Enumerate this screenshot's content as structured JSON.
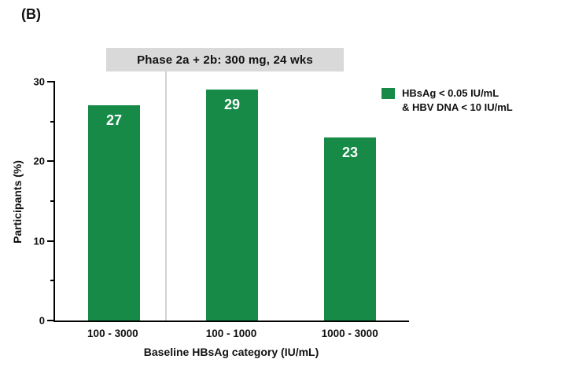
{
  "panel_label": "(B)",
  "legend": {
    "swatch_color": "#178a47",
    "lines": [
      "HBsAg < 0.05 IU/mL",
      "& HBV DNA < 10 IU/mL"
    ]
  },
  "chart_data": {
    "type": "bar",
    "title": "Phase 2a + 2b: 300 mg, 24 wks",
    "categories": [
      "100 - 3000",
      "100 - 1000",
      "1000 - 3000"
    ],
    "values": [
      27,
      29,
      23
    ],
    "xlabel": "Baseline HBsAg category (IU/mL)",
    "ylabel": "Participants (%)",
    "ylim": [
      0,
      30
    ],
    "y_major_ticks": [
      0,
      10,
      20,
      30
    ],
    "y_minor_ticks": [
      5,
      15,
      25
    ],
    "bar_color": "#178a47",
    "value_label_color": "#ffffff",
    "grid": false,
    "legend_position": "right",
    "separator_after_category_index": 0
  }
}
